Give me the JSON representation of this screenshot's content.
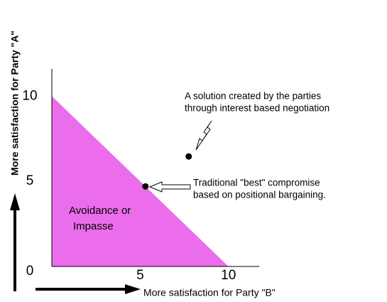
{
  "chart_data": {
    "type": "scatter",
    "x_label": "More satisfaction for Party \"B\"",
    "y_label": "More satisfaction for Party \"A\"",
    "xlim": [
      0,
      11.7
    ],
    "ylim": [
      0,
      11.6
    ],
    "xticks": [
      5,
      10
    ],
    "yticks": [
      0,
      5,
      10
    ],
    "region": {
      "x": [
        0,
        0,
        10
      ],
      "y": [
        0,
        10,
        0
      ],
      "color": "#e43ce4",
      "label": [
        "Avoidance or",
        "Impasse"
      ]
    },
    "series": [
      {
        "name": "Traditional compromise",
        "color": "#000000",
        "x": [
          5.3
        ],
        "y": [
          4.7
        ],
        "annotation": [
          "Traditional \"best\" compromise",
          "based on positional bargaining."
        ]
      },
      {
        "name": "Interest based solution",
        "color": "#000000",
        "x": [
          7.75
        ],
        "y": [
          6.46
        ],
        "annotation": [
          "A solution created by the parties",
          "through interest based negotiation"
        ]
      }
    ]
  }
}
